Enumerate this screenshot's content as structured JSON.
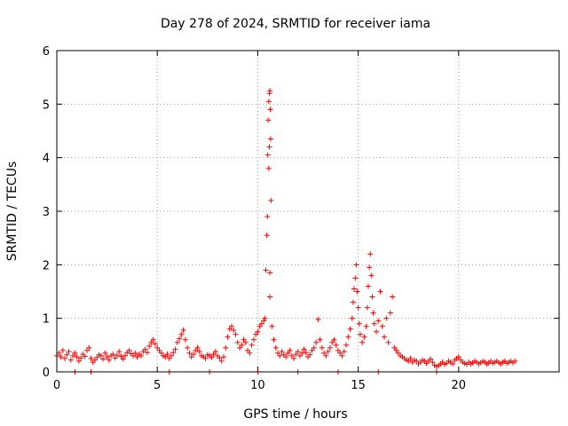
{
  "chart_data": {
    "type": "scatter",
    "title": "Day 278 of 2024, SRMTID for receiver iama",
    "xlabel": "GPS time / hours",
    "ylabel": "SRMTID / TECUs",
    "xlim": [
      0,
      25
    ],
    "ylim": [
      0,
      6
    ],
    "xticks": [
      0,
      5,
      10,
      15,
      20
    ],
    "yticks": [
      0,
      1,
      2,
      3,
      4,
      5,
      6
    ],
    "grid": true,
    "marker": "+",
    "series": [
      {
        "name": "SRMTID",
        "color": "#ff0000",
        "points": [
          [
            0.0,
            0.3
          ],
          [
            0.1,
            0.35
          ],
          [
            0.2,
            0.28
          ],
          [
            0.3,
            0.4
          ],
          [
            0.4,
            0.25
          ],
          [
            0.5,
            0.32
          ],
          [
            0.6,
            0.38
          ],
          [
            0.7,
            0.22
          ],
          [
            0.8,
            0.3
          ],
          [
            0.9,
            0.35
          ],
          [
            1.0,
            0.28
          ],
          [
            1.1,
            0.2
          ],
          [
            1.2,
            0.26
          ],
          [
            1.3,
            0.33
          ],
          [
            1.4,
            0.29
          ],
          [
            1.5,
            0.4
          ],
          [
            1.6,
            0.45
          ],
          [
            1.7,
            0.25
          ],
          [
            1.8,
            0.18
          ],
          [
            1.9,
            0.22
          ],
          [
            2.0,
            0.27
          ],
          [
            2.1,
            0.32
          ],
          [
            2.2,
            0.3
          ],
          [
            2.3,
            0.24
          ],
          [
            2.4,
            0.35
          ],
          [
            2.5,
            0.28
          ],
          [
            2.6,
            0.22
          ],
          [
            2.7,
            0.3
          ],
          [
            2.8,
            0.33
          ],
          [
            2.9,
            0.26
          ],
          [
            3.0,
            0.31
          ],
          [
            3.1,
            0.38
          ],
          [
            3.2,
            0.29
          ],
          [
            3.3,
            0.24
          ],
          [
            3.4,
            0.3
          ],
          [
            3.5,
            0.36
          ],
          [
            3.6,
            0.4
          ],
          [
            3.7,
            0.34
          ],
          [
            3.8,
            0.3
          ],
          [
            3.9,
            0.35
          ],
          [
            4.0,
            0.28
          ],
          [
            4.1,
            0.33
          ],
          [
            4.2,
            0.3
          ],
          [
            4.3,
            0.38
          ],
          [
            4.4,
            0.42
          ],
          [
            4.5,
            0.36
          ],
          [
            4.6,
            0.48
          ],
          [
            4.7,
            0.55
          ],
          [
            4.8,
            0.6
          ],
          [
            4.9,
            0.52
          ],
          [
            5.0,
            0.45
          ],
          [
            5.1,
            0.4
          ],
          [
            5.2,
            0.35
          ],
          [
            5.3,
            0.3
          ],
          [
            5.4,
            0.28
          ],
          [
            5.5,
            0.33
          ],
          [
            5.6,
            0.25
          ],
          [
            5.7,
            0.3
          ],
          [
            5.8,
            0.36
          ],
          [
            5.9,
            0.42
          ],
          [
            6.0,
            0.55
          ],
          [
            6.1,
            0.62
          ],
          [
            6.2,
            0.7
          ],
          [
            6.3,
            0.78
          ],
          [
            6.4,
            0.6
          ],
          [
            6.5,
            0.45
          ],
          [
            6.6,
            0.35
          ],
          [
            6.7,
            0.28
          ],
          [
            6.8,
            0.33
          ],
          [
            6.9,
            0.4
          ],
          [
            7.0,
            0.45
          ],
          [
            7.1,
            0.38
          ],
          [
            7.2,
            0.3
          ],
          [
            7.3,
            0.28
          ],
          [
            7.4,
            0.25
          ],
          [
            7.5,
            0.32
          ],
          [
            7.6,
            0.3
          ],
          [
            7.7,
            0.27
          ],
          [
            7.8,
            0.33
          ],
          [
            7.9,
            0.38
          ],
          [
            8.0,
            0.3
          ],
          [
            8.1,
            0.26
          ],
          [
            8.2,
            0.2
          ],
          [
            8.3,
            0.28
          ],
          [
            8.4,
            0.45
          ],
          [
            8.5,
            0.65
          ],
          [
            8.6,
            0.8
          ],
          [
            8.7,
            0.85
          ],
          [
            8.8,
            0.78
          ],
          [
            8.9,
            0.7
          ],
          [
            9.0,
            0.55
          ],
          [
            9.1,
            0.45
          ],
          [
            9.2,
            0.5
          ],
          [
            9.3,
            0.6
          ],
          [
            9.4,
            0.55
          ],
          [
            9.5,
            0.4
          ],
          [
            9.6,
            0.35
          ],
          [
            9.7,
            0.5
          ],
          [
            9.8,
            0.6
          ],
          [
            9.9,
            0.7
          ],
          [
            10.0,
            0.75
          ],
          [
            10.1,
            0.85
          ],
          [
            10.2,
            0.9
          ],
          [
            10.3,
            0.95
          ],
          [
            10.35,
            1.0
          ],
          [
            10.4,
            1.9
          ],
          [
            10.45,
            2.55
          ],
          [
            10.48,
            2.9
          ],
          [
            10.5,
            4.05
          ],
          [
            10.52,
            4.7
          ],
          [
            10.55,
            5.05
          ],
          [
            10.58,
            5.2
          ],
          [
            10.6,
            5.25
          ],
          [
            10.62,
            4.9
          ],
          [
            10.64,
            4.35
          ],
          [
            10.66,
            3.2
          ],
          [
            10.6,
            1.85
          ],
          [
            10.6,
            1.4
          ],
          [
            10.55,
            3.8
          ],
          [
            10.58,
            4.2
          ],
          [
            10.7,
            0.85
          ],
          [
            10.8,
            0.6
          ],
          [
            10.9,
            0.45
          ],
          [
            11.0,
            0.35
          ],
          [
            11.1,
            0.3
          ],
          [
            11.2,
            0.38
          ],
          [
            11.3,
            0.32
          ],
          [
            11.4,
            0.28
          ],
          [
            11.5,
            0.35
          ],
          [
            11.6,
            0.4
          ],
          [
            11.7,
            0.3
          ],
          [
            11.8,
            0.25
          ],
          [
            11.9,
            0.33
          ],
          [
            12.0,
            0.38
          ],
          [
            12.1,
            0.3
          ],
          [
            12.2,
            0.35
          ],
          [
            12.3,
            0.42
          ],
          [
            12.4,
            0.36
          ],
          [
            12.5,
            0.28
          ],
          [
            12.6,
            0.32
          ],
          [
            12.7,
            0.4
          ],
          [
            12.8,
            0.45
          ],
          [
            12.9,
            0.55
          ],
          [
            13.0,
            0.98
          ],
          [
            13.1,
            0.6
          ],
          [
            13.2,
            0.45
          ],
          [
            13.3,
            0.35
          ],
          [
            13.4,
            0.3
          ],
          [
            13.5,
            0.38
          ],
          [
            13.6,
            0.45
          ],
          [
            13.7,
            0.55
          ],
          [
            13.8,
            0.6
          ],
          [
            13.9,
            0.5
          ],
          [
            14.0,
            0.4
          ],
          [
            14.1,
            0.35
          ],
          [
            14.2,
            0.3
          ],
          [
            14.3,
            0.38
          ],
          [
            14.4,
            0.5
          ],
          [
            14.5,
            0.65
          ],
          [
            14.6,
            0.8
          ],
          [
            14.7,
            1.0
          ],
          [
            14.75,
            1.3
          ],
          [
            14.8,
            1.55
          ],
          [
            14.85,
            1.75
          ],
          [
            14.9,
            2.0
          ],
          [
            14.95,
            1.5
          ],
          [
            15.0,
            1.2
          ],
          [
            15.05,
            0.9
          ],
          [
            15.1,
            0.7
          ],
          [
            15.2,
            0.55
          ],
          [
            15.3,
            0.65
          ],
          [
            15.4,
            0.85
          ],
          [
            15.45,
            1.2
          ],
          [
            15.5,
            1.6
          ],
          [
            15.55,
            1.95
          ],
          [
            15.6,
            2.2
          ],
          [
            15.65,
            1.8
          ],
          [
            15.7,
            1.4
          ],
          [
            15.75,
            1.1
          ],
          [
            15.8,
            0.9
          ],
          [
            15.9,
            0.75
          ],
          [
            16.0,
            0.95
          ],
          [
            16.1,
            1.5
          ],
          [
            16.2,
            0.85
          ],
          [
            16.3,
            0.65
          ],
          [
            16.4,
            1.0
          ],
          [
            16.5,
            0.55
          ],
          [
            16.6,
            1.1
          ],
          [
            16.7,
            1.4
          ],
          [
            16.8,
            0.45
          ],
          [
            16.9,
            0.4
          ],
          [
            17.0,
            0.35
          ],
          [
            17.1,
            0.3
          ],
          [
            17.2,
            0.28
          ],
          [
            17.3,
            0.25
          ],
          [
            17.4,
            0.22
          ],
          [
            17.5,
            0.2
          ],
          [
            17.6,
            0.25
          ],
          [
            17.7,
            0.18
          ],
          [
            17.8,
            0.22
          ],
          [
            17.9,
            0.2
          ],
          [
            18.0,
            0.15
          ],
          [
            18.1,
            0.18
          ],
          [
            18.2,
            0.22
          ],
          [
            18.3,
            0.2
          ],
          [
            18.4,
            0.16
          ],
          [
            18.5,
            0.2
          ],
          [
            18.6,
            0.24
          ],
          [
            18.7,
            0.18
          ],
          [
            18.8,
            0.12
          ],
          [
            18.9,
            0.1
          ],
          [
            19.0,
            0.12
          ],
          [
            19.1,
            0.15
          ],
          [
            19.2,
            0.18
          ],
          [
            19.3,
            0.14
          ],
          [
            19.4,
            0.16
          ],
          [
            19.5,
            0.2
          ],
          [
            19.6,
            0.18
          ],
          [
            19.7,
            0.15
          ],
          [
            19.8,
            0.22
          ],
          [
            19.9,
            0.25
          ],
          [
            20.0,
            0.28
          ],
          [
            20.1,
            0.22
          ],
          [
            20.2,
            0.18
          ],
          [
            20.3,
            0.16
          ],
          [
            20.4,
            0.14
          ],
          [
            20.5,
            0.18
          ],
          [
            20.6,
            0.15
          ],
          [
            20.7,
            0.17
          ],
          [
            20.8,
            0.2
          ],
          [
            20.9,
            0.18
          ],
          [
            21.0,
            0.15
          ],
          [
            21.1,
            0.17
          ],
          [
            21.2,
            0.2
          ],
          [
            21.3,
            0.18
          ],
          [
            21.4,
            0.15
          ],
          [
            21.5,
            0.17
          ],
          [
            21.6,
            0.2
          ],
          [
            21.7,
            0.16
          ],
          [
            21.8,
            0.18
          ],
          [
            21.9,
            0.2
          ],
          [
            22.0,
            0.17
          ],
          [
            22.1,
            0.15
          ],
          [
            22.2,
            0.18
          ],
          [
            22.3,
            0.2
          ],
          [
            22.4,
            0.16
          ],
          [
            22.5,
            0.18
          ],
          [
            22.6,
            0.2
          ],
          [
            22.7,
            0.17
          ],
          [
            22.8,
            0.2
          ],
          [
            0.9,
            0.0
          ],
          [
            1.7,
            0.0
          ],
          [
            5.6,
            0.0
          ],
          [
            7.6,
            0.0
          ],
          [
            10.0,
            0.0
          ],
          [
            12.0,
            0.0
          ],
          [
            14.0,
            0.0
          ],
          [
            16.0,
            0.0
          ],
          [
            18.9,
            0.0
          ]
        ]
      }
    ]
  }
}
